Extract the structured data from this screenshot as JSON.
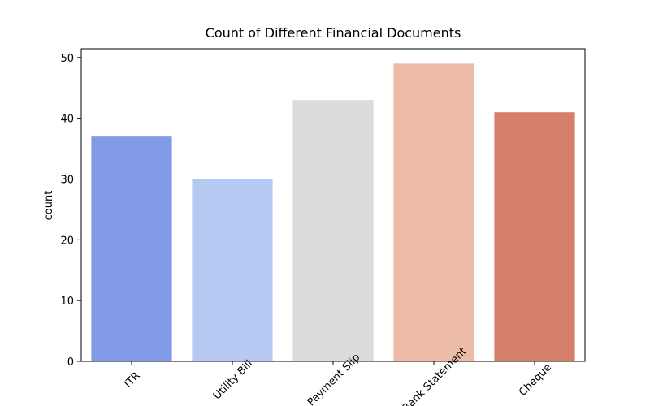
{
  "chart_data": {
    "type": "bar",
    "title": "Count of Different Financial Documents",
    "y_label": "count",
    "categories": [
      "ITR",
      "Utility Bill",
      "Payment Slip",
      "Bank Statement",
      "Cheque"
    ],
    "values": [
      37,
      30,
      43,
      49,
      41
    ],
    "colors": [
      "#819be6",
      "#b5c9f2",
      "#dcdcdc",
      "#ecbca6",
      "#d6806c"
    ],
    "ylim": [
      0,
      51.45
    ],
    "yticks": [
      0,
      10,
      20,
      30,
      40,
      50
    ],
    "grid": false
  }
}
